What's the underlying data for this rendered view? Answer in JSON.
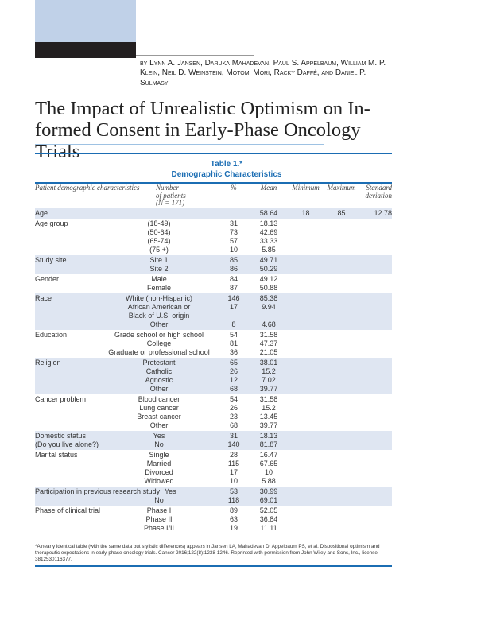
{
  "article": {
    "authors": "by Lynn A. Jansen, Daruka Mahadevan, Paul S. Appelbaum, William M. P. Klein, Neil D. Weinstein, Motomi Mori, Racky Daffé, and Daniel P. Sulmasy",
    "title": "The Impact of Unrealistic Optimism on In-formed Consent in Early-Phase Oncology Trials"
  },
  "table": {
    "label": "Table 1.*",
    "caption": "Demographic Characteristics",
    "headers": [
      "Patient demographic characteristics",
      "Number of patients (N = 171)",
      "%",
      "Mean",
      "Minimum",
      "Maximum",
      "Standard deviation"
    ],
    "groups": [
      {
        "shaded": true,
        "rows": [
          [
            "Age",
            "",
            "",
            "58.64",
            "18",
            "85",
            "12.78"
          ]
        ]
      },
      {
        "shaded": false,
        "rows": [
          [
            "Age group",
            "(18-49)",
            "31",
            "18.13"
          ],
          [
            "",
            "(50-64)",
            "73",
            "42.69"
          ],
          [
            "",
            "(65-74)",
            "57",
            "33.33"
          ],
          [
            "",
            "(75 +)",
            "10",
            "5.85"
          ]
        ]
      },
      {
        "shaded": true,
        "rows": [
          [
            "Study site",
            "Site 1",
            "85",
            "49.71"
          ],
          [
            "",
            "Site 2",
            "86",
            "50.29"
          ]
        ]
      },
      {
        "shaded": false,
        "rows": [
          [
            "Gender",
            "Male",
            "84",
            "49.12"
          ],
          [
            "",
            "Female",
            "87",
            "50.88"
          ]
        ]
      },
      {
        "shaded": true,
        "rows": [
          [
            "Race",
            "White (non-Hispanic)",
            "146",
            "85.38"
          ],
          [
            "",
            "African American or",
            "17",
            "9.94"
          ],
          [
            "",
            "Black of U.S. origin",
            "",
            ""
          ],
          [
            "",
            "Other",
            "8",
            "4.68"
          ]
        ]
      },
      {
        "shaded": false,
        "rows": [
          [
            "Education",
            "Grade school or high school",
            "54",
            "31.58"
          ],
          [
            "",
            "College",
            "81",
            "47.37"
          ],
          [
            "",
            "Graduate or professional school",
            "36",
            "21.05"
          ]
        ]
      },
      {
        "shaded": true,
        "rows": [
          [
            "Religion",
            "Protestant",
            "65",
            "38.01"
          ],
          [
            "",
            "Catholic",
            "26",
            "15.2"
          ],
          [
            "",
            "Agnostic",
            "12",
            "7.02"
          ],
          [
            "",
            "Other",
            "68",
            "39.77"
          ]
        ]
      },
      {
        "shaded": false,
        "rows": [
          [
            "Cancer problem",
            "Blood cancer",
            "54",
            "31.58"
          ],
          [
            "",
            "Lung cancer",
            "26",
            "15.2"
          ],
          [
            "",
            "Breast cancer",
            "23",
            "13.45"
          ],
          [
            "",
            "Other",
            "68",
            "39.77"
          ]
        ]
      },
      {
        "shaded": true,
        "rows": [
          [
            "Domestic status",
            "Yes",
            "31",
            "18.13"
          ],
          [
            "(Do you live alone?)",
            "No",
            "140",
            "81.87"
          ]
        ]
      },
      {
        "shaded": false,
        "rows": [
          [
            "Marital status",
            "Single",
            "28",
            "16.47"
          ],
          [
            "",
            "Married",
            "115",
            "67.65"
          ],
          [
            "",
            "Divorced",
            "17",
            "10"
          ],
          [
            "",
            "Widowed",
            "10",
            "5.88"
          ]
        ]
      },
      {
        "shaded": true,
        "rows": [
          [
            "Participation in previous research study",
            "Yes",
            "53",
            "30.99"
          ],
          [
            "",
            "No",
            "118",
            "69.01"
          ]
        ]
      },
      {
        "shaded": false,
        "rows": [
          [
            "Phase of clinical trial",
            "Phase I",
            "89",
            "52.05"
          ],
          [
            "",
            "Phase II",
            "63",
            "36.84"
          ],
          [
            "",
            "Phase I/II",
            "19",
            "11.11"
          ]
        ]
      }
    ],
    "footnote": "*A nearly identical table (with the same data but stylistic differences) appears in Jansen LA, Mahadevan D, Appelbaum PS, et al. Dispositional optimism and therapeutic expectations in early-phase oncology trials. Cancer 2016;122(8):1238-1246. Reprinted with permission from John Wiley and Sons, Inc., license 3812530116377."
  },
  "colors": {
    "accent": "#1b6db3",
    "shade": "#dfe6f2",
    "block": "#c0d1e8"
  }
}
